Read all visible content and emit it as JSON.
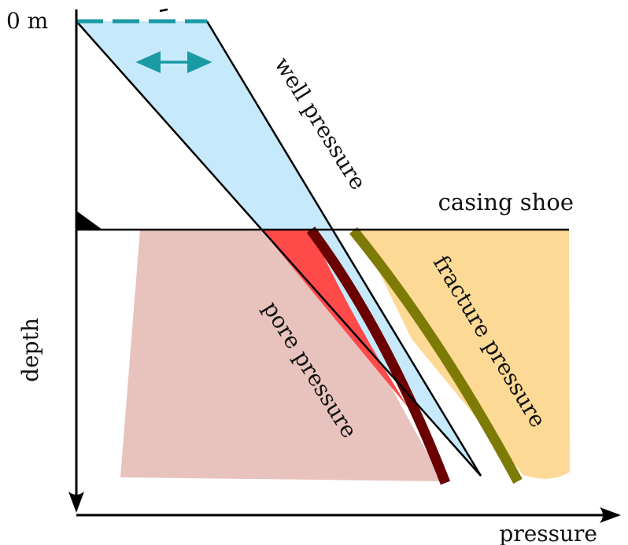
{
  "labels": {
    "depth_zero": "0 m",
    "depth_axis": "depth",
    "pressure_axis": "pressure",
    "casing_shoe": "casing shoe",
    "well_pressure": "well pressure",
    "pore_pressure": "pore pressure",
    "fracture_pressure": "fracture pressure"
  },
  "colors": {
    "well_window_fill": "#c6e9fb",
    "pore_region_fill": "#e8c3bd",
    "fracture_region_fill": "#fcd994",
    "overlap_red": "#ff4a4a",
    "pore_curve": "#6b0000",
    "fracture_curve": "#7d7a06",
    "teal_accent": "#1a9aa3",
    "line": "#000000"
  }
}
